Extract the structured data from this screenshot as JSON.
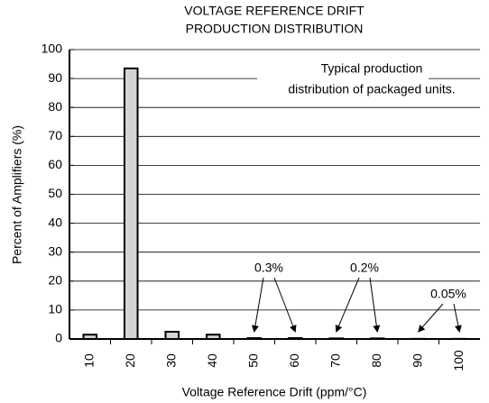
{
  "chart_data": {
    "type": "bar",
    "title": [
      "VOLTAGE REFERENCE DRIFT",
      "PRODUCTION DISTRIBUTION"
    ],
    "x_label": "Voltage Reference Drift (ppm/°C)",
    "y_label": "Percent of Amplifiers (%)",
    "note": [
      "Typical production",
      "distribution of packaged units."
    ],
    "annotations": [
      "0.3%",
      "0.2%",
      "0.05%"
    ],
    "categories": [
      "10",
      "20",
      "30",
      "40",
      "50",
      "60",
      "70",
      "80",
      "90",
      "100"
    ],
    "values": [
      1.5,
      93.5,
      2.5,
      1.5,
      0.3,
      0.3,
      0.2,
      0.2,
      0.05,
      0.05
    ],
    "color": "#d4d4d4",
    "ylim": [
      0,
      100
    ],
    "yticks": [
      0,
      10,
      20,
      30,
      40,
      50,
      60,
      70,
      80,
      90,
      100
    ],
    "grid": true
  }
}
